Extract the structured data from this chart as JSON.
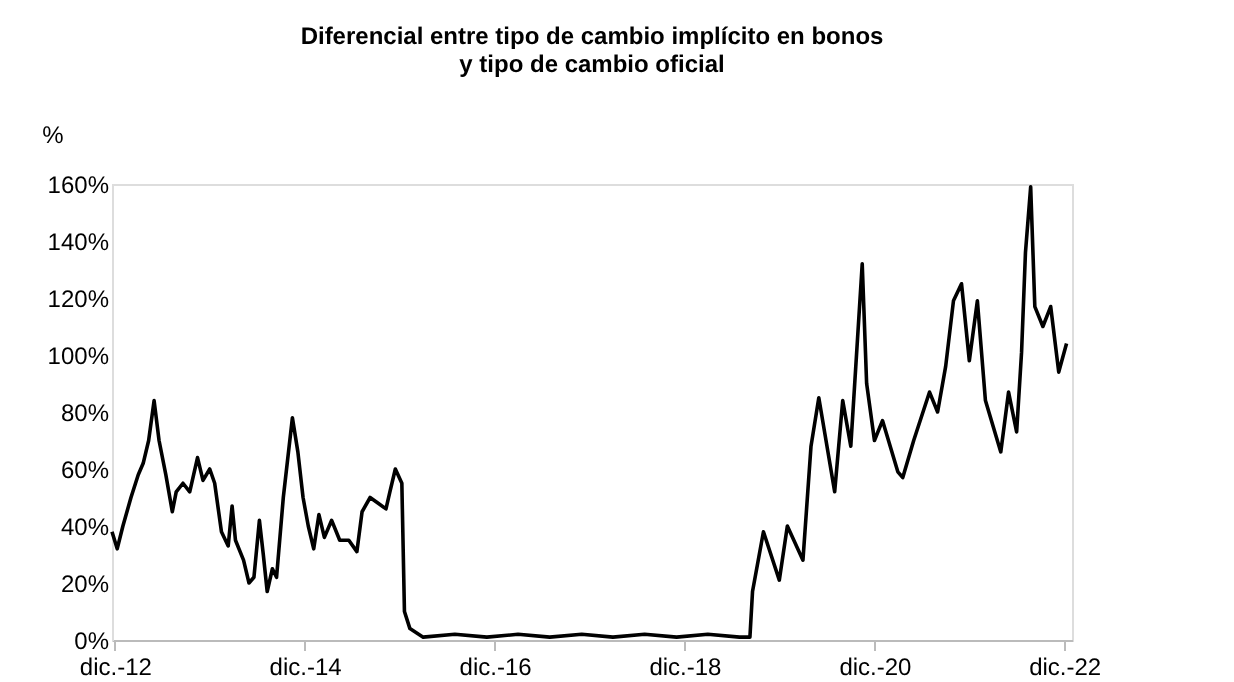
{
  "chart_data": {
    "type": "line",
    "title": "Diferencial entre tipo de cambio implícito en bonos\ny tipo de cambio oficial",
    "ylabel": "%",
    "xlim": [
      "2012-11-20",
      "2022-12-31"
    ],
    "xticks": [
      {
        "value": "2012-12-01",
        "label": "dic.-12"
      },
      {
        "value": "2014-12-01",
        "label": "dic.-14"
      },
      {
        "value": "2016-12-01",
        "label": "dic.-16"
      },
      {
        "value": "2018-12-01",
        "label": "dic.-18"
      },
      {
        "value": "2020-12-01",
        "label": "dic.-20"
      },
      {
        "value": "2022-12-01",
        "label": "dic.-22"
      }
    ],
    "ylim": [
      0,
      160
    ],
    "yticks": [
      {
        "value": 0,
        "label": "0%"
      },
      {
        "value": 20,
        "label": "20%"
      },
      {
        "value": 40,
        "label": "40%"
      },
      {
        "value": 60,
        "label": "60%"
      },
      {
        "value": 80,
        "label": "80%"
      },
      {
        "value": 100,
        "label": "100%"
      },
      {
        "value": 120,
        "label": "120%"
      },
      {
        "value": 140,
        "label": "140%"
      },
      {
        "value": 160,
        "label": "160%"
      }
    ],
    "grid": false,
    "marker": "none",
    "line_style": "solid",
    "x": [
      "2012-11-20",
      "2012-12-10",
      "2013-01-01",
      "2013-02-01",
      "2013-03-01",
      "2013-03-20",
      "2013-04-10",
      "2013-05-01",
      "2013-05-20",
      "2013-06-15",
      "2013-07-10",
      "2013-07-25",
      "2013-08-20",
      "2013-09-15",
      "2013-10-15",
      "2013-11-05",
      "2013-12-01",
      "2013-12-20",
      "2014-01-15",
      "2014-02-10",
      "2014-02-25",
      "2014-03-10",
      "2014-04-10",
      "2014-05-01",
      "2014-05-20",
      "2014-06-10",
      "2014-06-25",
      "2014-07-10",
      "2014-07-30",
      "2014-08-15",
      "2014-09-10",
      "2014-10-15",
      "2014-11-05",
      "2014-11-25",
      "2014-12-15",
      "2015-01-05",
      "2015-01-25",
      "2015-02-15",
      "2015-03-15",
      "2015-04-15",
      "2015-05-20",
      "2015-06-20",
      "2015-07-10",
      "2015-08-10",
      "2015-09-10",
      "2015-10-10",
      "2015-10-25",
      "2015-11-15",
      "2015-12-10",
      "2015-12-20",
      "2016-01-10",
      "2016-03-01",
      "2016-07-01",
      "2016-11-01",
      "2017-03-01",
      "2017-07-01",
      "2017-11-01",
      "2018-03-01",
      "2018-07-01",
      "2018-11-01",
      "2019-03-01",
      "2019-07-01",
      "2019-08-10",
      "2019-08-20",
      "2019-10-01",
      "2019-12-01",
      "2020-01-01",
      "2020-03-01",
      "2020-04-01",
      "2020-05-01",
      "2020-07-01",
      "2020-08-01",
      "2020-09-01",
      "2020-10-15",
      "2020-11-01",
      "2020-12-01",
      "2021-01-01",
      "2021-03-01",
      "2021-03-20",
      "2021-05-01",
      "2021-07-01",
      "2021-08-01",
      "2021-09-01",
      "2021-10-01",
      "2021-11-01",
      "2021-12-01",
      "2022-01-01",
      "2022-02-01",
      "2022-04-01",
      "2022-05-01",
      "2022-06-01",
      "2022-06-20",
      "2022-07-05",
      "2022-07-25",
      "2022-08-10",
      "2022-09-10",
      "2022-10-10",
      "2022-11-10",
      "2022-12-10"
    ],
    "series": [
      {
        "color": "#000000",
        "values": [
          38,
          32,
          40,
          50,
          58,
          62,
          70,
          84,
          70,
          58,
          45,
          52,
          55,
          52,
          64,
          56,
          60,
          55,
          38,
          33,
          47,
          35,
          28,
          20,
          22,
          42,
          30,
          17,
          25,
          22,
          50,
          78,
          66,
          50,
          40,
          32,
          44,
          36,
          42,
          35,
          35,
          31,
          45,
          50,
          48,
          46,
          52,
          60,
          55,
          10,
          4,
          1,
          2,
          1,
          2,
          1,
          2,
          1,
          2,
          1,
          2,
          1,
          1,
          17,
          38,
          21,
          40,
          28,
          68,
          85,
          52,
          84,
          68,
          132,
          90,
          70,
          77,
          59,
          57,
          70,
          87,
          80,
          96,
          119,
          125,
          98,
          119,
          84,
          66,
          87,
          73,
          101,
          136,
          159,
          117,
          110,
          117,
          94,
          104
        ]
      }
    ]
  }
}
